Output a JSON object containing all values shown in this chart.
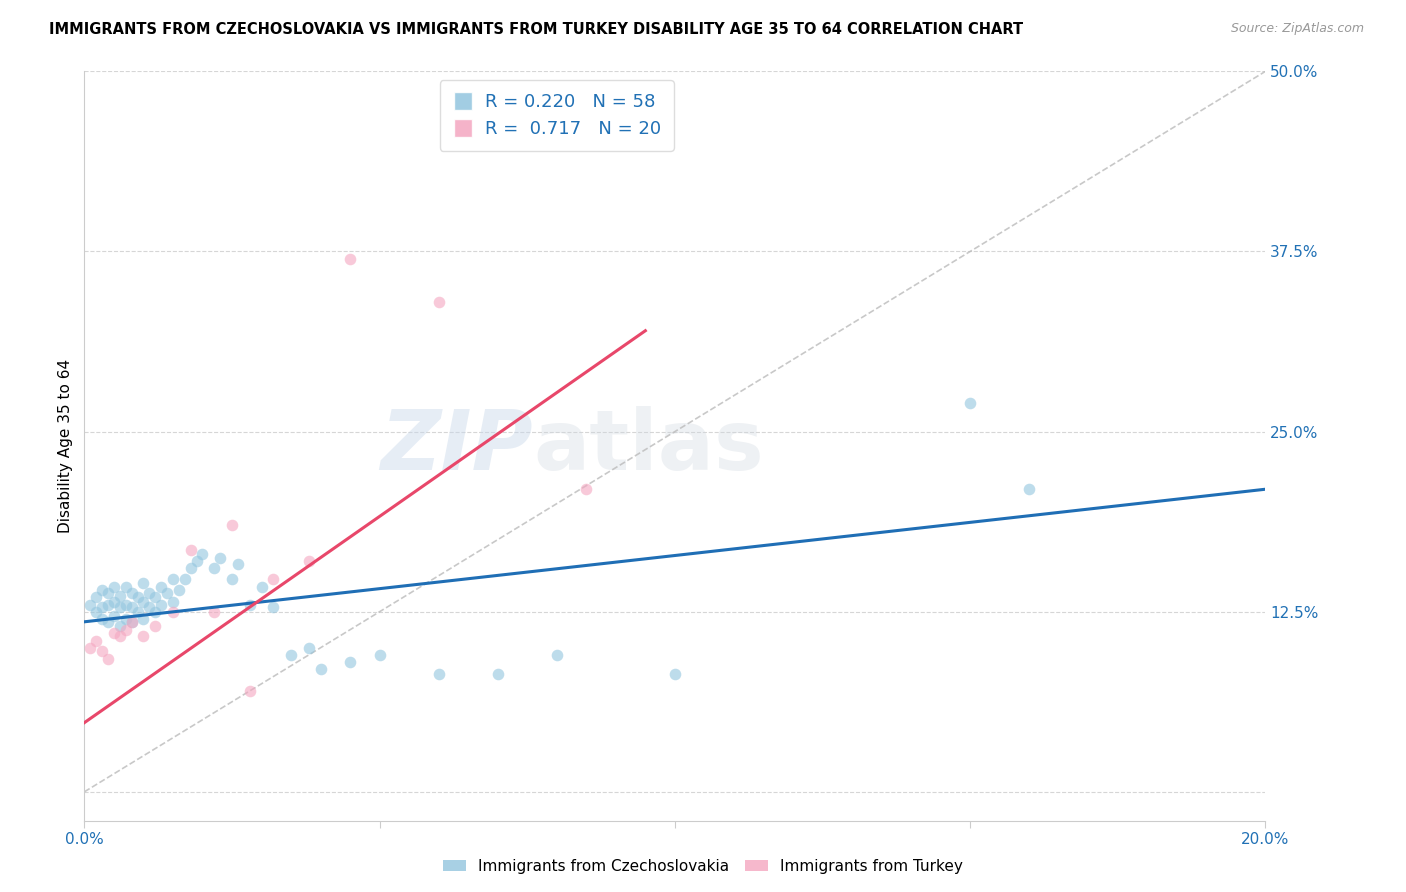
{
  "title": "IMMIGRANTS FROM CZECHOSLOVAKIA VS IMMIGRANTS FROM TURKEY DISABILITY AGE 35 TO 64 CORRELATION CHART",
  "source": "Source: ZipAtlas.com",
  "ylabel": "Disability Age 35 to 64",
  "xlim": [
    0.0,
    0.2
  ],
  "ylim": [
    -0.02,
    0.5
  ],
  "color_czech": "#92c5de",
  "color_turkey": "#f4a6c0",
  "color_trend_czech": "#1f6eb5",
  "color_trend_turkey": "#e8476a",
  "color_diag": "#bbbbbb",
  "R_czech": 0.22,
  "N_czech": 58,
  "R_turkey": 0.717,
  "N_turkey": 20,
  "legend_label_czech": "Immigrants from Czechoslovakia",
  "legend_label_turkey": "Immigrants from Turkey",
  "watermark_zip": "ZIP",
  "watermark_atlas": "atlas",
  "scatter_alpha": 0.6,
  "scatter_size": 70,
  "czech_x": [
    0.001,
    0.002,
    0.002,
    0.003,
    0.003,
    0.003,
    0.004,
    0.004,
    0.004,
    0.005,
    0.005,
    0.005,
    0.006,
    0.006,
    0.006,
    0.007,
    0.007,
    0.007,
    0.008,
    0.008,
    0.008,
    0.009,
    0.009,
    0.01,
    0.01,
    0.01,
    0.011,
    0.011,
    0.012,
    0.012,
    0.013,
    0.013,
    0.014,
    0.015,
    0.015,
    0.016,
    0.017,
    0.018,
    0.019,
    0.02,
    0.022,
    0.023,
    0.025,
    0.026,
    0.028,
    0.03,
    0.032,
    0.035,
    0.038,
    0.04,
    0.045,
    0.05,
    0.06,
    0.07,
    0.08,
    0.1,
    0.15,
    0.16
  ],
  "czech_y": [
    0.13,
    0.125,
    0.135,
    0.12,
    0.128,
    0.14,
    0.118,
    0.13,
    0.138,
    0.122,
    0.132,
    0.142,
    0.115,
    0.128,
    0.136,
    0.12,
    0.13,
    0.142,
    0.118,
    0.128,
    0.138,
    0.125,
    0.135,
    0.12,
    0.132,
    0.145,
    0.128,
    0.138,
    0.125,
    0.135,
    0.13,
    0.142,
    0.138,
    0.132,
    0.148,
    0.14,
    0.148,
    0.155,
    0.16,
    0.165,
    0.155,
    0.162,
    0.148,
    0.158,
    0.13,
    0.142,
    0.128,
    0.095,
    0.1,
    0.085,
    0.09,
    0.095,
    0.082,
    0.082,
    0.095,
    0.082,
    0.27,
    0.21
  ],
  "turkey_x": [
    0.001,
    0.002,
    0.003,
    0.004,
    0.005,
    0.006,
    0.007,
    0.008,
    0.01,
    0.012,
    0.015,
    0.018,
    0.022,
    0.025,
    0.028,
    0.032,
    0.038,
    0.045,
    0.06,
    0.085
  ],
  "turkey_y": [
    0.1,
    0.105,
    0.098,
    0.092,
    0.11,
    0.108,
    0.112,
    0.118,
    0.108,
    0.115,
    0.125,
    0.168,
    0.125,
    0.185,
    0.07,
    0.148,
    0.16,
    0.37,
    0.34,
    0.21
  ],
  "czech_trend_x0": 0.0,
  "czech_trend_x1": 0.2,
  "czech_trend_y0": 0.118,
  "czech_trend_y1": 0.21,
  "turkey_trend_x0": 0.0,
  "turkey_trend_x1": 0.095,
  "turkey_trend_y0": 0.048,
  "turkey_trend_y1": 0.32
}
